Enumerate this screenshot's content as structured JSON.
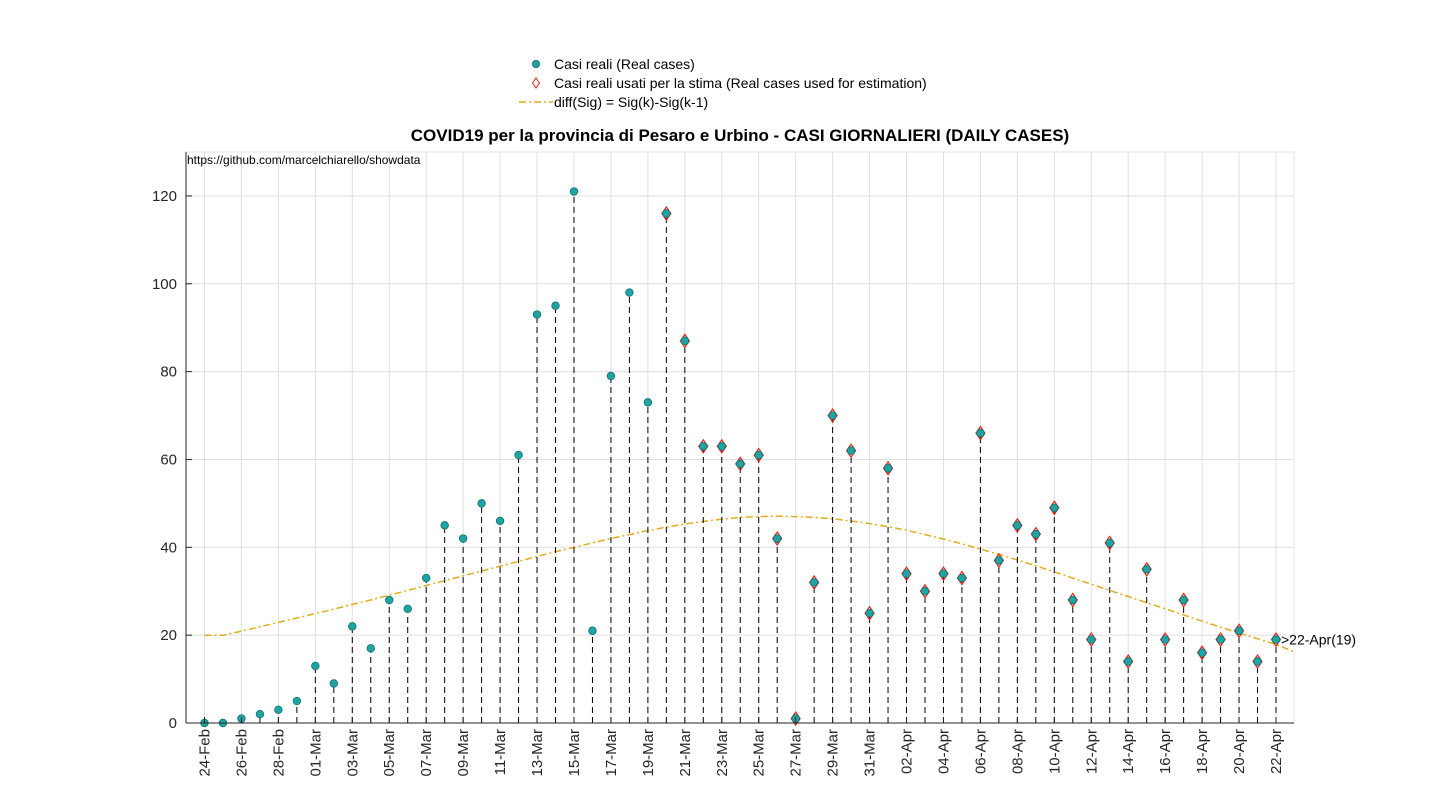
{
  "chart_data": {
    "type": "scatter",
    "title": "COVID19 per la provincia di Pesaro e Urbino - CASI GIORNALIERI (DAILY CASES)",
    "annotation_url": "https://github.com/marcelchiarello/showdata",
    "end_label": ">22-Apr(19)",
    "xlabel": "",
    "ylabel": "",
    "ylim": [
      0,
      130
    ],
    "yticks": [
      0,
      20,
      40,
      60,
      80,
      100,
      120
    ],
    "grid": true,
    "legend_position": "top-center",
    "x_tick_labels": [
      "24-Feb",
      "26-Feb",
      "28-Feb",
      "01-Mar",
      "03-Mar",
      "05-Mar",
      "07-Mar",
      "09-Mar",
      "11-Mar",
      "13-Mar",
      "15-Mar",
      "17-Mar",
      "19-Mar",
      "21-Mar",
      "23-Mar",
      "25-Mar",
      "27-Mar",
      "29-Mar",
      "31-Mar",
      "02-Apr",
      "04-Apr",
      "06-Apr",
      "08-Apr",
      "10-Apr",
      "12-Apr",
      "14-Apr",
      "16-Apr",
      "18-Apr",
      "20-Apr",
      "22-Apr"
    ],
    "dates": [
      "24-Feb",
      "25-Feb",
      "26-Feb",
      "27-Feb",
      "28-Feb",
      "29-Feb",
      "01-Mar",
      "02-Mar",
      "03-Mar",
      "04-Mar",
      "05-Mar",
      "06-Mar",
      "07-Mar",
      "08-Mar",
      "09-Mar",
      "10-Mar",
      "11-Mar",
      "12-Mar",
      "13-Mar",
      "14-Mar",
      "15-Mar",
      "16-Mar",
      "17-Mar",
      "18-Mar",
      "19-Mar",
      "20-Mar",
      "21-Mar",
      "22-Mar",
      "23-Mar",
      "24-Mar",
      "25-Mar",
      "26-Mar",
      "27-Mar",
      "28-Mar",
      "29-Mar",
      "30-Mar",
      "31-Mar",
      "01-Apr",
      "02-Apr",
      "03-Apr",
      "04-Apr",
      "05-Apr",
      "06-Apr",
      "07-Apr",
      "08-Apr",
      "09-Apr",
      "10-Apr",
      "11-Apr",
      "12-Apr",
      "13-Apr",
      "14-Apr",
      "15-Apr",
      "16-Apr",
      "17-Apr",
      "18-Apr",
      "19-Apr",
      "20-Apr",
      "21-Apr",
      "22-Apr"
    ],
    "series": [
      {
        "name": "Casi reali (Real cases)",
        "marker": "circle",
        "color": "#1fa4a4",
        "values": [
          0,
          0,
          1,
          2,
          3,
          5,
          13,
          9,
          22,
          17,
          28,
          26,
          33,
          45,
          42,
          50,
          46,
          61,
          93,
          95,
          121,
          21,
          79,
          98,
          73,
          116,
          87,
          63,
          63,
          59,
          61,
          42,
          1,
          32,
          70,
          62,
          25,
          58,
          34,
          30,
          34,
          33,
          66,
          37,
          45,
          43,
          49,
          28,
          19,
          41,
          14,
          35,
          19,
          28,
          16,
          19,
          21,
          14,
          19
        ]
      },
      {
        "name": "Casi reali usati per la stima (Real cases used for estimation)",
        "marker": "diamond",
        "color": "#e8251a",
        "start_date": "20-Mar"
      },
      {
        "name": "diff(Sig) = Sig(k)-Sig(k-1)",
        "marker": "dash-dot",
        "color": "#e2ad1c",
        "values": [
          20,
          20,
          20.9,
          21.9,
          22.9,
          23.9,
          24.9,
          25.9,
          27,
          28,
          29.1,
          30.2,
          31.3,
          32.4,
          33.5,
          34.6,
          35.7,
          36.8,
          37.9,
          39,
          40,
          41,
          42,
          42.9,
          43.8,
          44.6,
          45.3,
          45.9,
          46.4,
          46.8,
          47,
          47.1,
          47,
          46.8,
          46.5,
          46,
          45.4,
          44.7,
          43.9,
          42.9,
          41.9,
          40.8,
          39.6,
          38.4,
          37.1,
          35.8,
          34.4,
          33,
          31.6,
          30.2,
          28.8,
          27.4,
          26,
          24.6,
          23.2,
          21.8,
          20.5,
          19.2,
          17.9
        ]
      }
    ]
  }
}
